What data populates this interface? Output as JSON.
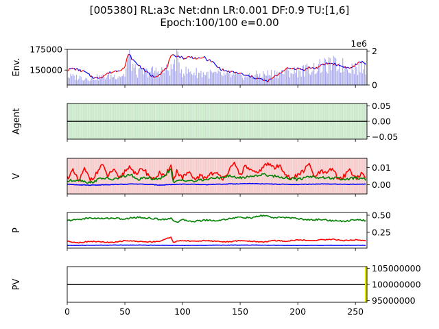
{
  "figure": {
    "title_line1": "[005380] RL:a3c Net:dnn LR:0.001 DF:0.9 TU:[1,6]",
    "title_line2": "Epoch:100/100 e=0.00"
  },
  "colors": {
    "price_up": "#ff0000",
    "price_down": "#0000ff",
    "volume": "#aaaaee",
    "agent_hold_shade": "#d8efd8",
    "value_shade": "#f8d8d8",
    "series_red": "#ff0000",
    "series_green": "#008000",
    "series_blue": "#0000ff",
    "pv_edge": "#e6e600",
    "axis_black": "#000000"
  },
  "chart_data": [
    {
      "type": "line",
      "panel": "env",
      "ylabel": "Env.",
      "x_range": [
        0,
        260
      ],
      "x_ticks": [
        0,
        50,
        100,
        150,
        200,
        250
      ],
      "y_range": [
        132000,
        175000
      ],
      "y_ticks": [
        150000,
        175000
      ],
      "y2_range": [
        0,
        2.1
      ],
      "y2_ticks": [
        0,
        2
      ],
      "y2_offset_label": "1e6",
      "price_keypoints": [
        [
          0,
          150000
        ],
        [
          5,
          152000
        ],
        [
          10,
          150000
        ],
        [
          15,
          148000
        ],
        [
          20,
          143000
        ],
        [
          25,
          140000
        ],
        [
          30,
          142000
        ],
        [
          35,
          146000
        ],
        [
          40,
          148000
        ],
        [
          45,
          150000
        ],
        [
          50,
          153000
        ],
        [
          53,
          170000
        ],
        [
          57,
          162000
        ],
        [
          62,
          156000
        ],
        [
          67,
          150000
        ],
        [
          72,
          144000
        ],
        [
          75,
          142000
        ],
        [
          80,
          145000
        ],
        [
          86,
          152000
        ],
        [
          90,
          166000
        ],
        [
          93,
          168000
        ],
        [
          98,
          166000
        ],
        [
          102,
          164000
        ],
        [
          106,
          166000
        ],
        [
          110,
          165000
        ],
        [
          115,
          163000
        ],
        [
          118,
          166000
        ],
        [
          122,
          162000
        ],
        [
          126,
          160000
        ],
        [
          130,
          154000
        ],
        [
          135,
          150000
        ],
        [
          140,
          148000
        ],
        [
          145,
          147000
        ],
        [
          150,
          146000
        ],
        [
          155,
          143000
        ],
        [
          160,
          142000
        ],
        [
          165,
          140000
        ],
        [
          170,
          138000
        ],
        [
          173,
          136000
        ],
        [
          178,
          140000
        ],
        [
          183,
          145000
        ],
        [
          188,
          150000
        ],
        [
          192,
          152000
        ],
        [
          196,
          152000
        ],
        [
          200,
          152000
        ],
        [
          205,
          150000
        ],
        [
          210,
          153000
        ],
        [
          215,
          152000
        ],
        [
          220,
          155000
        ],
        [
          225,
          158000
        ],
        [
          230,
          158000
        ],
        [
          235,
          156000
        ],
        [
          240,
          154000
        ],
        [
          245,
          152000
        ],
        [
          250,
          156000
        ],
        [
          255,
          160000
        ],
        [
          259,
          158000
        ]
      ],
      "volume_keypoints": [
        [
          0,
          0.5
        ],
        [
          20,
          0.4
        ],
        [
          50,
          0.6
        ],
        [
          53,
          1.7
        ],
        [
          60,
          0.7
        ],
        [
          90,
          0.9
        ],
        [
          95,
          1.5
        ],
        [
          100,
          0.8
        ],
        [
          150,
          0.5
        ],
        [
          200,
          0.8
        ],
        [
          230,
          1.2
        ],
        [
          255,
          1.0
        ]
      ]
    },
    {
      "type": "line",
      "panel": "agent",
      "ylabel": "Agent",
      "y_range": [
        -0.0575,
        0.0575
      ],
      "y_ticks": [
        0.05,
        0.0,
        -0.05
      ],
      "y_tick_labels": [
        "0.05",
        "0.00",
        "−0.05"
      ],
      "series": [
        {
          "values_constant": 0.0
        }
      ]
    },
    {
      "type": "line",
      "panel": "value",
      "ylabel": "V",
      "y_range": [
        -0.0055,
        0.0155
      ],
      "y_ticks": [
        0.01,
        0.0
      ],
      "y_tick_labels": [
        "0.01",
        "0.00"
      ],
      "series": [
        {
          "color_key": "series_red",
          "keypoints": [
            [
              0,
              0.004
            ],
            [
              5,
              0.008
            ],
            [
              10,
              0.002
            ],
            [
              15,
              0.009
            ],
            [
              20,
              0.003
            ],
            [
              25,
              0.006
            ],
            [
              30,
              0.012
            ],
            [
              35,
              0.005
            ],
            [
              40,
              0.009
            ],
            [
              45,
              0.003
            ],
            [
              50,
              0.008
            ],
            [
              55,
              0.011
            ],
            [
              60,
              0.005
            ],
            [
              65,
              0.01
            ],
            [
              70,
              0.006
            ],
            [
              75,
              0.003
            ],
            [
              80,
              0.007
            ],
            [
              85,
              0.004
            ],
            [
              90,
              0.0128
            ],
            [
              92,
              0.002
            ],
            [
              95,
              0.008
            ],
            [
              100,
              0.004
            ],
            [
              105,
              0.007
            ],
            [
              110,
              0.003
            ],
            [
              115,
              0.005
            ],
            [
              120,
              0.004
            ],
            [
              125,
              0.007
            ],
            [
              130,
              0.006
            ],
            [
              135,
              0.004
            ],
            [
              140,
              0.008
            ],
            [
              145,
              0.012
            ],
            [
              150,
              0.006
            ],
            [
              155,
              0.011
            ],
            [
              160,
              0.008
            ],
            [
              165,
              0.006
            ],
            [
              170,
              0.011
            ],
            [
              175,
              0.012
            ],
            [
              180,
              0.01
            ],
            [
              185,
              0.011
            ],
            [
              190,
              0.006
            ],
            [
              195,
              0.003
            ],
            [
              200,
              0.006
            ],
            [
              205,
              0.008
            ],
            [
              210,
              0.012
            ],
            [
              215,
              0.004
            ],
            [
              220,
              0.008
            ],
            [
              225,
              0.006
            ],
            [
              230,
              0.01
            ],
            [
              235,
              0.003
            ],
            [
              240,
              0.005
            ],
            [
              245,
              0.009
            ],
            [
              250,
              0.004
            ],
            [
              255,
              0.006
            ],
            [
              259,
              0.004
            ]
          ]
        },
        {
          "color_key": "series_green",
          "keypoints": [
            [
              0,
              0.002
            ],
            [
              10,
              0.003
            ],
            [
              20,
              0.001
            ],
            [
              30,
              0.004
            ],
            [
              40,
              0.003
            ],
            [
              50,
              0.005
            ],
            [
              55,
              0.006
            ],
            [
              60,
              0.003
            ],
            [
              70,
              0.004
            ],
            [
              80,
              0.003
            ],
            [
              90,
              0.009
            ],
            [
              92,
              0.001
            ],
            [
              100,
              0.003
            ],
            [
              110,
              0.002
            ],
            [
              120,
              0.003
            ],
            [
              130,
              0.004
            ],
            [
              140,
              0.005
            ],
            [
              150,
              0.004
            ],
            [
              160,
              0.005
            ],
            [
              170,
              0.006
            ],
            [
              180,
              0.005
            ],
            [
              190,
              0.004
            ],
            [
              200,
              0.003
            ],
            [
              210,
              0.005
            ],
            [
              220,
              0.004
            ],
            [
              230,
              0.004
            ],
            [
              240,
              0.003
            ],
            [
              250,
              0.004
            ],
            [
              259,
              0.003
            ]
          ]
        },
        {
          "color_key": "series_blue",
          "keypoints": [
            [
              0,
              0.0002
            ],
            [
              20,
              -0.0003
            ],
            [
              40,
              0.0001
            ],
            [
              60,
              0.0004
            ],
            [
              80,
              -0.0002
            ],
            [
              100,
              0.0003
            ],
            [
              120,
              0.0
            ],
            [
              140,
              0.0004
            ],
            [
              160,
              0.0006
            ],
            [
              180,
              0.0003
            ],
            [
              200,
              0.0001
            ],
            [
              220,
              0.0004
            ],
            [
              240,
              0.0002
            ],
            [
              259,
              0.0003
            ]
          ]
        }
      ]
    },
    {
      "type": "line",
      "panel": "policy",
      "ylabel": "P",
      "y_range": [
        0.02,
        0.54
      ],
      "y_ticks": [
        0.5,
        0.25
      ],
      "y_tick_labels": [
        "0.50",
        "0.25"
      ],
      "series": [
        {
          "color_key": "series_green",
          "keypoints": [
            [
              0,
              0.42
            ],
            [
              10,
              0.44
            ],
            [
              20,
              0.46
            ],
            [
              30,
              0.45
            ],
            [
              40,
              0.46
            ],
            [
              50,
              0.44
            ],
            [
              55,
              0.46
            ],
            [
              60,
              0.47
            ],
            [
              70,
              0.46
            ],
            [
              80,
              0.44
            ],
            [
              90,
              0.45
            ],
            [
              95,
              0.4
            ],
            [
              100,
              0.43
            ],
            [
              110,
              0.41
            ],
            [
              120,
              0.43
            ],
            [
              130,
              0.42
            ],
            [
              140,
              0.45
            ],
            [
              150,
              0.47
            ],
            [
              160,
              0.46
            ],
            [
              170,
              0.5
            ],
            [
              175,
              0.48
            ],
            [
              180,
              0.46
            ],
            [
              190,
              0.47
            ],
            [
              200,
              0.45
            ],
            [
              210,
              0.43
            ],
            [
              220,
              0.44
            ],
            [
              230,
              0.42
            ],
            [
              240,
              0.41
            ],
            [
              250,
              0.44
            ],
            [
              259,
              0.42
            ]
          ]
        },
        {
          "color_key": "series_red",
          "keypoints": [
            [
              0,
              0.12
            ],
            [
              10,
              0.1
            ],
            [
              20,
              0.12
            ],
            [
              30,
              0.11
            ],
            [
              40,
              0.1
            ],
            [
              50,
              0.13
            ],
            [
              60,
              0.12
            ],
            [
              70,
              0.11
            ],
            [
              80,
              0.12
            ],
            [
              90,
              0.18
            ],
            [
              92,
              0.11
            ],
            [
              100,
              0.13
            ],
            [
              110,
              0.12
            ],
            [
              120,
              0.13
            ],
            [
              130,
              0.12
            ],
            [
              140,
              0.11
            ],
            [
              150,
              0.13
            ],
            [
              160,
              0.12
            ],
            [
              170,
              0.11
            ],
            [
              180,
              0.13
            ],
            [
              190,
              0.12
            ],
            [
              200,
              0.14
            ],
            [
              210,
              0.13
            ],
            [
              220,
              0.14
            ],
            [
              230,
              0.15
            ],
            [
              240,
              0.13
            ],
            [
              250,
              0.14
            ],
            [
              259,
              0.13
            ]
          ]
        },
        {
          "color_key": "series_blue",
          "keypoints": [
            [
              0,
              0.06
            ],
            [
              50,
              0.065
            ],
            [
              100,
              0.06
            ],
            [
              150,
              0.065
            ],
            [
              200,
              0.06
            ],
            [
              259,
              0.062
            ]
          ]
        }
      ]
    },
    {
      "type": "line",
      "panel": "pv",
      "ylabel": "PV",
      "xlabel": "",
      "y_range": [
        94500000,
        105500000
      ],
      "y_ticks": [
        105000000,
        100000000,
        95000000
      ],
      "y_tick_labels": [
        "105000000",
        "100000000",
        "95000000"
      ],
      "series": [
        {
          "values_constant": 100000000
        }
      ]
    }
  ]
}
